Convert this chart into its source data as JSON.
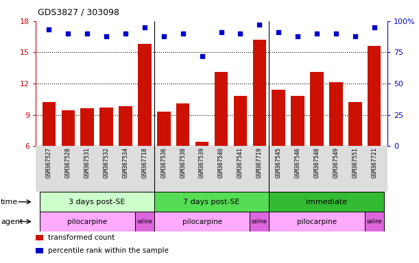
{
  "title": "GDS3827 / 303098",
  "samples": [
    "GSM367527",
    "GSM367528",
    "GSM367531",
    "GSM367532",
    "GSM367534",
    "GSM367718",
    "GSM367536",
    "GSM367538",
    "GSM367539",
    "GSM367540",
    "GSM367541",
    "GSM367719",
    "GSM367545",
    "GSM367546",
    "GSM367548",
    "GSM367549",
    "GSM367551",
    "GSM367721"
  ],
  "transformed_counts": [
    10.2,
    9.4,
    9.6,
    9.7,
    9.8,
    15.8,
    9.3,
    10.1,
    6.4,
    13.1,
    10.8,
    16.2,
    11.4,
    10.8,
    13.1,
    12.1,
    10.2,
    15.6
  ],
  "percentile_ranks": [
    93,
    90,
    90,
    88,
    90,
    95,
    88,
    90,
    72,
    91,
    90,
    97,
    91,
    88,
    90,
    90,
    88,
    95
  ],
  "ylim_left": [
    6,
    18
  ],
  "ylim_right": [
    0,
    100
  ],
  "yticks_left": [
    6,
    9,
    12,
    15,
    18
  ],
  "yticks_right": [
    0,
    25,
    50,
    75,
    100
  ],
  "bar_color": "#cc1100",
  "dot_color": "#0000cc",
  "grid_color": "#000000",
  "group_dividers": [
    6,
    12
  ],
  "time_groups": [
    {
      "label": "3 days post-SE",
      "start": 0,
      "end": 6,
      "color": "#ccffcc"
    },
    {
      "label": "7 days post-SE",
      "start": 6,
      "end": 12,
      "color": "#55dd55"
    },
    {
      "label": "immediate",
      "start": 12,
      "end": 18,
      "color": "#33bb33"
    }
  ],
  "agent_groups": [
    {
      "label": "pilocarpine",
      "start": 0,
      "end": 5,
      "color": "#ffaaff"
    },
    {
      "label": "saline",
      "start": 5,
      "end": 6,
      "color": "#dd66dd"
    },
    {
      "label": "pilocarpine",
      "start": 6,
      "end": 11,
      "color": "#ffaaff"
    },
    {
      "label": "saline",
      "start": 11,
      "end": 12,
      "color": "#dd66dd"
    },
    {
      "label": "pilocarpine",
      "start": 12,
      "end": 17,
      "color": "#ffaaff"
    },
    {
      "label": "saline",
      "start": 17,
      "end": 18,
      "color": "#dd66dd"
    }
  ],
  "tick_label_color_left": "#cc0000",
  "tick_label_color_right": "#0000cc",
  "legend_items": [
    {
      "label": "transformed count",
      "color": "#cc1100"
    },
    {
      "label": "percentile rank within the sample",
      "color": "#0000cc"
    }
  ],
  "xtick_bg": "#dddddd"
}
